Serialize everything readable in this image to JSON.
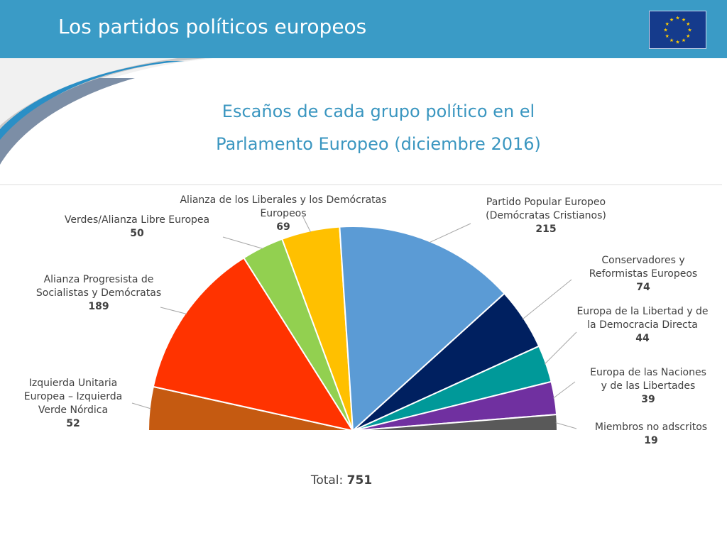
{
  "header": {
    "title": "Los partidos políticos europeos"
  },
  "colors": {
    "header_bg": "#3a9bc6",
    "title_color": "#3a96c0",
    "flag_bg": "#153b8c",
    "flag_stars": "#ffcc00"
  },
  "chart_data": {
    "type": "pie",
    "variant": "half-donut (semicircle parliament chart)",
    "title_lines": [
      "Escaños de cada grupo político en el",
      "Parlamento Europeo (diciembre 2016)"
    ],
    "slices": [
      {
        "label_lines": [
          "Izquierda Unitaria",
          "Europea – Izquierda",
          "Verde Nórdica"
        ],
        "value": 52,
        "color": "#c55a11"
      },
      {
        "label_lines": [
          "Alianza Progresista de",
          "Socialistas y Demócratas"
        ],
        "value": 189,
        "color": "#ff3300"
      },
      {
        "label_lines": [
          "Verdes/Alianza Libre Europea"
        ],
        "value": 50,
        "color": "#92d050"
      },
      {
        "label_lines": [
          "Alianza de los Liberales y los Demócratas",
          "Europeos"
        ],
        "value": 69,
        "color": "#ffc000"
      },
      {
        "label_lines": [
          "Partido Popular Europeo",
          "(Demócratas Cristianos)"
        ],
        "value": 215,
        "color": "#5b9bd5"
      },
      {
        "label_lines": [
          "Conservadores y",
          "Reformistas Europeos"
        ],
        "value": 74,
        "color": "#002060"
      },
      {
        "label_lines": [
          "Europa de la Libertad y de",
          "la Democracia Directa"
        ],
        "value": 44,
        "color": "#009999"
      },
      {
        "label_lines": [
          "Europa de las Naciones",
          "y de las Libertades"
        ],
        "value": 39,
        "color": "#7030a0"
      },
      {
        "label_lines": [
          "Miembros no adscritos"
        ],
        "value": 19,
        "color": "#595959"
      }
    ],
    "total_label": "Total:",
    "total_value": 751
  }
}
